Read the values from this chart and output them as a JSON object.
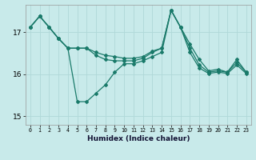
{
  "xlabel": "Humidex (Indice chaleur)",
  "bg_color": "#c8eaea",
  "grid_color": "#b0d8d8",
  "line_color": "#1a7a6a",
  "xlim": [
    -0.5,
    23.5
  ],
  "ylim": [
    14.8,
    17.65
  ],
  "yticks": [
    15,
    16,
    17
  ],
  "xticks": [
    0,
    1,
    2,
    3,
    4,
    5,
    6,
    7,
    8,
    9,
    10,
    11,
    12,
    13,
    14,
    15,
    16,
    17,
    18,
    19,
    20,
    21,
    22,
    23
  ],
  "series1": [
    17.12,
    17.38,
    17.12,
    16.85,
    16.62,
    15.35,
    15.35,
    15.55,
    15.75,
    16.05,
    16.25,
    16.25,
    16.32,
    16.42,
    16.52,
    17.52,
    17.12,
    16.72,
    16.35,
    16.08,
    16.12,
    16.05,
    16.35,
    16.05
  ],
  "series2": [
    17.12,
    17.38,
    17.12,
    16.85,
    16.62,
    16.62,
    16.62,
    16.52,
    16.45,
    16.42,
    16.38,
    16.38,
    16.42,
    16.55,
    16.62,
    17.52,
    17.12,
    16.62,
    16.22,
    16.05,
    16.08,
    16.05,
    16.28,
    16.05
  ],
  "series3": [
    17.12,
    17.38,
    17.12,
    16.85,
    16.62,
    16.62,
    16.62,
    16.45,
    16.35,
    16.32,
    16.32,
    16.32,
    16.38,
    16.52,
    16.62,
    17.52,
    17.12,
    16.52,
    16.15,
    16.02,
    16.05,
    16.02,
    16.22,
    16.02
  ]
}
